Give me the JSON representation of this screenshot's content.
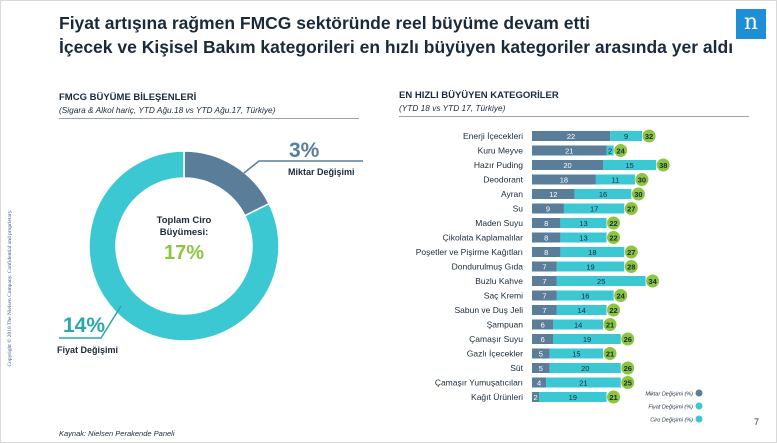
{
  "title": {
    "line1": "Fiyat artışına rağmen FMCG sektöründe  reel büyüme devam etti",
    "line2": "İçecek ve Kişisel Bakım kategorileri  en hızlı büyüyen kategoriler  arasında  yer aldı"
  },
  "logo": {
    "glyph": "n"
  },
  "copyright": "Copyright © 2018 The Nielsen Company. Confidential and proprietary.",
  "left": {
    "heading": "FMCG BÜYÜME BİLEŞENLERİ",
    "subheading": "(Sigara & Alkol hariç, YTD Ağu.18 vs YTD Ağu.17, Türkiye)"
  },
  "right": {
    "heading": "EN HIZLI BÜYÜYEN KATEGORİLER",
    "subheading": "(YTD 18  vs YTD 17, Türkiye)"
  },
  "source": "Kaynak: Nielsen Perakende Paneli",
  "page_number": "7",
  "colors": {
    "volume": "#5a7d99",
    "price": "#3cc8d2",
    "total": "#8cc63f",
    "donut_label": "#2aa7a8",
    "text_dark": "#1b2a3a"
  },
  "chart_data": [
    {
      "type": "pie",
      "variant": "donut",
      "center_label": "Toplam Ciro Büyümesi:",
      "center_value": "17%",
      "slices": [
        {
          "name": "Miktar Değişimi",
          "value": 3,
          "label": "3%"
        },
        {
          "name": "Fiyat Değişimi",
          "value": 14,
          "label": "14%"
        }
      ]
    },
    {
      "type": "bar",
      "orientation": "horizontal",
      "stacked": true,
      "categories": [
        "Enerji İçecekleri",
        "Kuru Meyve",
        "Hazır Puding",
        "Deodorant",
        "Ayran",
        "Su",
        "Maden Suyu",
        "Çikolata Kaplamalılar",
        "Poşetler ve Pişirme Kağıtları",
        "Dondurulmuş Gıda",
        "Buzlu Kahve",
        "Saç Kremi",
        "Sabun ve Duş Jeli",
        "Şampuan",
        "Çamaşır Suyu",
        "Gazlı İçecekler",
        "Süt",
        "Çamaşır Yumuşatıcıları",
        "Kağıt Ürünleri"
      ],
      "series": [
        {
          "name": "Miktar Değişimi (%)",
          "values": [
            22,
            21,
            20,
            18,
            12,
            9,
            8,
            8,
            8,
            7,
            7,
            7,
            7,
            6,
            6,
            5,
            5,
            4,
            2
          ]
        },
        {
          "name": "Fiyat Değişimi (%)",
          "values": [
            9,
            2,
            15,
            11,
            16,
            17,
            13,
            13,
            18,
            19,
            25,
            16,
            14,
            14,
            19,
            15,
            20,
            21,
            19
          ]
        },
        {
          "name": "Ciro Değişimi (%)",
          "values": [
            32,
            24,
            38,
            30,
            30,
            27,
            22,
            22,
            27,
            28,
            34,
            24,
            22,
            21,
            26,
            21,
            26,
            25,
            21
          ]
        }
      ],
      "legend_position": "bottom-right"
    }
  ]
}
